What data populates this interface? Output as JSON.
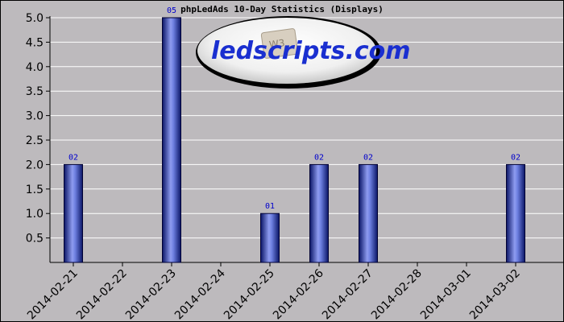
{
  "chart_data": {
    "type": "bar",
    "title": "phpLedAds 10-Day Statistics (Displays)",
    "categories": [
      "2014-02-21",
      "2014-02-22",
      "2014-02-23",
      "2014-02-24",
      "2014-02-25",
      "2014-02-26",
      "2014-02-27",
      "2014-02-28",
      "2014-03-01",
      "2014-03-02"
    ],
    "values": [
      2,
      0,
      5,
      0,
      1,
      2,
      2,
      0,
      0,
      2
    ],
    "data_labels": [
      "02",
      "",
      "05",
      "",
      "01",
      "02",
      "02",
      "",
      "",
      "02"
    ],
    "ylim": [
      0,
      5
    ],
    "yticks": [
      "0.5",
      "1.0",
      "1.5",
      "2.0",
      "2.5",
      "3.0",
      "3.5",
      "4.0",
      "4.5",
      "5.0"
    ],
    "grid": true,
    "bar_color": "#1c2a8a",
    "plot_background": "#bdbabd"
  },
  "logo": {
    "text": "ledscripts.com",
    "badge": "W3"
  }
}
